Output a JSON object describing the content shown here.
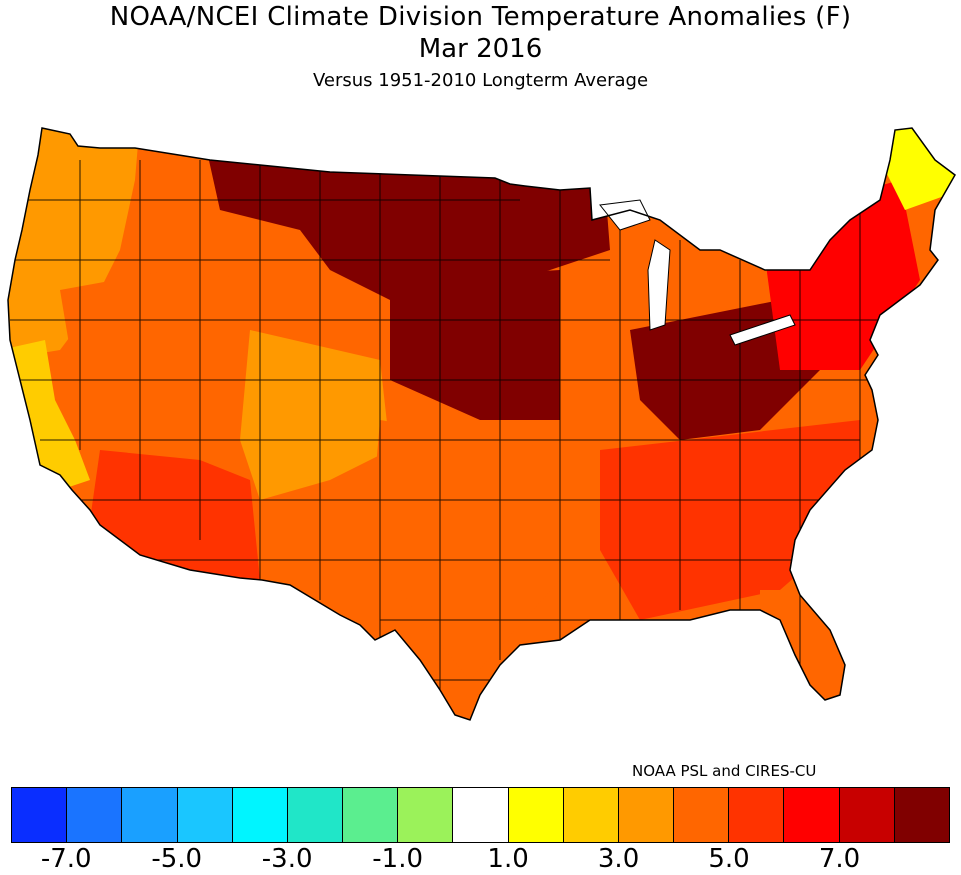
{
  "title": "NOAA/NCEI Climate Division Temperature Anomalies (F)",
  "period": "Mar 2016",
  "subtitle": "Versus 1951-2010 Longterm Average",
  "credit": "NOAA PSL and CIRES-CU",
  "units": "F",
  "legend": {
    "colors": [
      "#0a2eff",
      "#1a74ff",
      "#1aa0ff",
      "#1ac6ff",
      "#00f5ff",
      "#20e6c8",
      "#5bee8f",
      "#9bf25a",
      "#ffffff",
      "#ffff00",
      "#ffcc00",
      "#ff9900",
      "#ff6600",
      "#ff3300",
      "#ff0000",
      "#c80000",
      "#800000"
    ],
    "tick_labels": [
      "-7.0",
      "-5.0",
      "-3.0",
      "-1.0",
      "1.0",
      "3.0",
      "5.0",
      "7.0"
    ],
    "tick_boundaries": [
      1,
      3,
      5,
      7,
      9,
      11,
      13,
      15
    ]
  },
  "regions": [
    {
      "name": "Pacific Northwest coast",
      "anomaly_class": "3-4"
    },
    {
      "name": "California",
      "anomaly_class": "2-3"
    },
    {
      "name": "Great Basin",
      "anomaly_class": "4-5"
    },
    {
      "name": "Southwest",
      "anomaly_class": "5-6"
    },
    {
      "name": "Central Rockies",
      "anomaly_class": "3-4"
    },
    {
      "name": "Northern Plains",
      "anomaly_class": "7+"
    },
    {
      "name": "Upper Midwest",
      "anomaly_class": "7+"
    },
    {
      "name": "Southern Plains",
      "anomaly_class": "4-5"
    },
    {
      "name": "Ohio Valley",
      "anomaly_class": "7+"
    },
    {
      "name": "Southeast",
      "anomaly_class": "5-6"
    },
    {
      "name": "Northeast",
      "anomaly_class": "6-7"
    },
    {
      "name": "Maine",
      "anomaly_class": "1-2"
    },
    {
      "name": "Florida",
      "anomaly_class": "4-5"
    }
  ]
}
